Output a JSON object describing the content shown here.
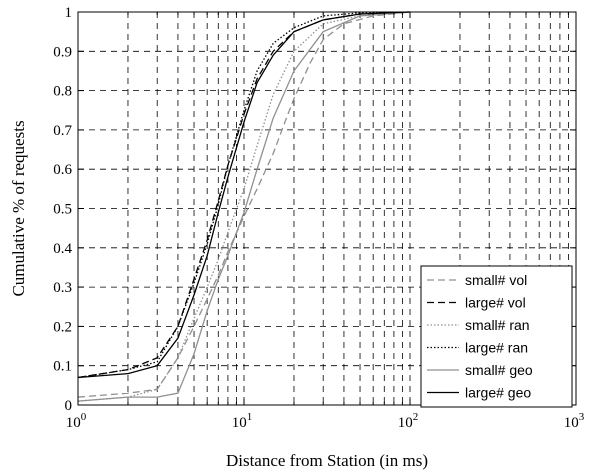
{
  "chart_data": {
    "type": "line",
    "title": "",
    "xlabel": "Distance from Station (in ms)",
    "ylabel": "Cumulative  % of requests",
    "xscale": "log",
    "xlim": [
      1,
      1000
    ],
    "ylim": [
      0,
      1
    ],
    "grid": true,
    "legend_position": "bottom-right",
    "x_tick_values": [
      1,
      10,
      100,
      1000
    ],
    "x_tick_labels": [
      {
        "base": "10",
        "exp": "0"
      },
      {
        "base": "10",
        "exp": "1"
      },
      {
        "base": "10",
        "exp": "2"
      },
      {
        "base": "10",
        "exp": "3"
      }
    ],
    "y_ticks": [
      "0",
      "0.1",
      "0.2",
      "0.3",
      "0.4",
      "0.5",
      "0.6",
      "0.7",
      "0.8",
      "0.9",
      "1"
    ],
    "series": [
      {
        "name": "small# vol",
        "color": "#909090",
        "dash": "dashed",
        "x": [
          1,
          2,
          3,
          4,
          5,
          6,
          7,
          8,
          10,
          12,
          15,
          18,
          20,
          25,
          30,
          40,
          60,
          100
        ],
        "y": [
          0.02,
          0.03,
          0.04,
          0.12,
          0.2,
          0.27,
          0.33,
          0.39,
          0.48,
          0.55,
          0.64,
          0.73,
          0.78,
          0.87,
          0.93,
          0.97,
          0.99,
          1.0
        ]
      },
      {
        "name": "large# vol",
        "color": "#000000",
        "dash": "dashed",
        "x": [
          1,
          2,
          3,
          4,
          5,
          6,
          7,
          8,
          10,
          12,
          15,
          20,
          30,
          50,
          100
        ],
        "y": [
          0.07,
          0.09,
          0.12,
          0.2,
          0.32,
          0.42,
          0.52,
          0.61,
          0.74,
          0.83,
          0.9,
          0.95,
          0.98,
          0.995,
          1.0
        ]
      },
      {
        "name": "small# ran",
        "color": "#909090",
        "dash": "dotted",
        "x": [
          1,
          2,
          3,
          4,
          5,
          6,
          7,
          8,
          10,
          12,
          15,
          20,
          30,
          50,
          100
        ],
        "y": [
          0.01,
          0.02,
          0.04,
          0.12,
          0.22,
          0.3,
          0.37,
          0.44,
          0.55,
          0.66,
          0.79,
          0.9,
          0.97,
          0.99,
          1.0
        ]
      },
      {
        "name": "large# ran",
        "color": "#000000",
        "dash": "dotted",
        "x": [
          1,
          2,
          3,
          4,
          5,
          6,
          7,
          8,
          10,
          12,
          15,
          20,
          30,
          50,
          100
        ],
        "y": [
          0.07,
          0.09,
          0.11,
          0.2,
          0.31,
          0.41,
          0.51,
          0.61,
          0.75,
          0.85,
          0.92,
          0.96,
          0.99,
          0.998,
          1.0
        ]
      },
      {
        "name": "small# geo",
        "color": "#909090",
        "dash": "solid",
        "x": [
          1,
          2,
          3,
          4,
          5,
          6,
          7,
          8,
          10,
          12,
          15,
          20,
          30,
          50,
          100
        ],
        "y": [
          0.01,
          0.02,
          0.02,
          0.03,
          0.13,
          0.24,
          0.32,
          0.38,
          0.49,
          0.6,
          0.73,
          0.85,
          0.95,
          0.99,
          1.0
        ]
      },
      {
        "name": "large# geo",
        "color": "#000000",
        "dash": "solid",
        "x": [
          1,
          2,
          3,
          4,
          5,
          6,
          7,
          8,
          10,
          12,
          15,
          20,
          30,
          50,
          100
        ],
        "y": [
          0.07,
          0.08,
          0.1,
          0.17,
          0.28,
          0.38,
          0.49,
          0.58,
          0.72,
          0.82,
          0.89,
          0.95,
          0.98,
          0.995,
          1.0
        ]
      }
    ]
  }
}
